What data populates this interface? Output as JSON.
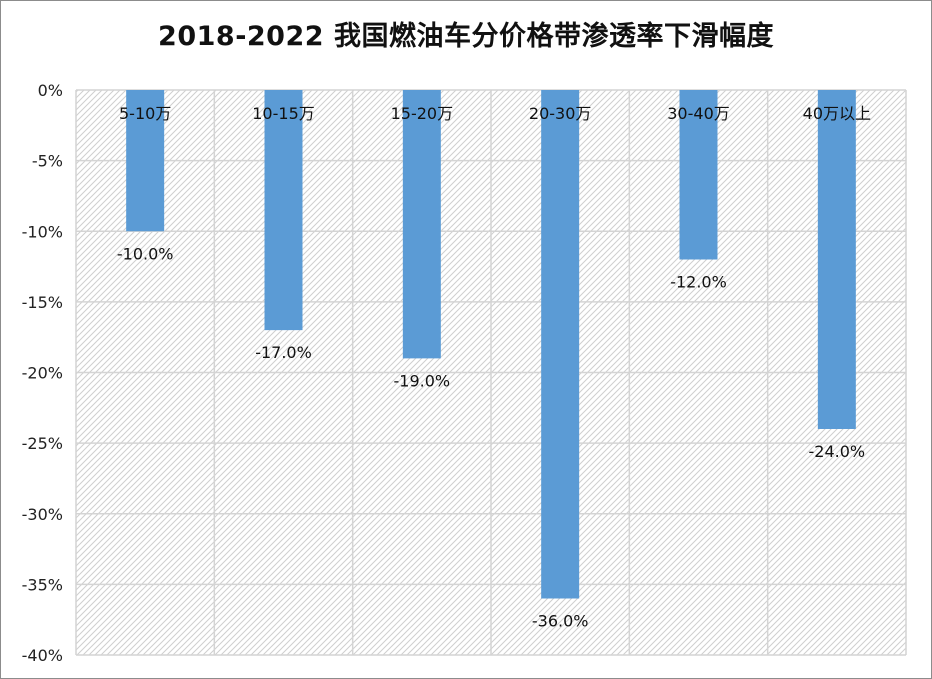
{
  "chart_data": {
    "type": "bar",
    "title": "2018-2022 我国燃油车分价格带渗透率下滑幅度",
    "categories": [
      "5-10万",
      "10-15万",
      "15-20万",
      "20-30万",
      "30-40万",
      "40万以上"
    ],
    "values": [
      -10.0,
      -17.0,
      -19.0,
      -36.0,
      -12.0,
      -24.0
    ],
    "data_labels": [
      "-10.0%",
      "-17.0%",
      "-19.0%",
      "-36.0%",
      "-12.0%",
      "-24.0%"
    ],
    "ylim": [
      -40,
      0
    ],
    "yticks": [
      0,
      -5,
      -10,
      -15,
      -20,
      -25,
      -30,
      -35,
      -40
    ],
    "ytick_labels": [
      "0%",
      "-5%",
      "-10%",
      "-15%",
      "-20%",
      "-25%",
      "-30%",
      "-35%",
      "-40%"
    ],
    "xlabel": "",
    "ylabel": "",
    "grid": true,
    "legend": "none",
    "colors": {
      "bar": "#5b9bd5",
      "grid": "#d4d4d4",
      "hatch": "#cfcfcf",
      "text": "#111111"
    }
  }
}
